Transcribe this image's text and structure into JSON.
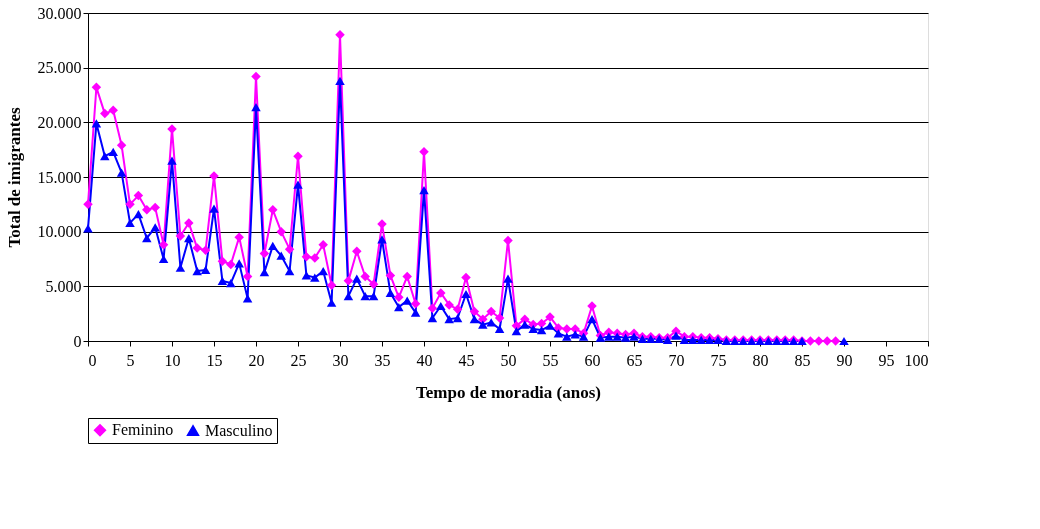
{
  "chart_data": {
    "type": "line",
    "xlabel": "Tempo de moradia (anos)",
    "ylabel": "Total de imigrantes",
    "x": [
      0,
      1,
      2,
      3,
      4,
      5,
      6,
      7,
      8,
      9,
      10,
      11,
      12,
      13,
      14,
      15,
      16,
      17,
      18,
      19,
      20,
      21,
      22,
      23,
      24,
      25,
      26,
      27,
      28,
      29,
      30,
      31,
      32,
      33,
      34,
      35,
      36,
      37,
      38,
      39,
      40,
      41,
      42,
      43,
      44,
      45,
      46,
      47,
      48,
      49,
      50,
      51,
      52,
      53,
      54,
      55,
      56,
      57,
      58,
      59,
      60,
      61,
      62,
      63,
      64,
      65,
      66,
      67,
      68,
      69,
      70,
      71,
      72,
      73,
      74,
      75,
      76,
      77,
      78,
      79,
      80,
      81,
      82,
      83,
      84,
      85,
      86,
      87,
      88,
      89,
      90
    ],
    "series": [
      {
        "name": "Feminino",
        "color": "#ff00ff",
        "marker": "diamond",
        "values": [
          12500,
          23200,
          20800,
          21100,
          17900,
          12500,
          13300,
          12000,
          12200,
          8800,
          19400,
          9600,
          10800,
          8500,
          8300,
          15100,
          7300,
          7000,
          9500,
          5900,
          24200,
          8000,
          12000,
          10000,
          8400,
          16900,
          7700,
          7600,
          8800,
          5100,
          28000,
          5500,
          8200,
          5900,
          5200,
          10700,
          6000,
          4000,
          5900,
          3400,
          17300,
          3000,
          4400,
          3300,
          2900,
          5800,
          2700,
          2000,
          2700,
          2100,
          9200,
          1400,
          2000,
          1500,
          1600,
          2200,
          1200,
          1100,
          1100,
          700,
          3200,
          500,
          800,
          700,
          600,
          700,
          400,
          400,
          300,
          300,
          900,
          400,
          400,
          300,
          300,
          200,
          100,
          100,
          100,
          100,
          100,
          100,
          100,
          100,
          100,
          0,
          0,
          0,
          0,
          0,
          null
        ]
      },
      {
        "name": "Masculino",
        "color": "#0000ff",
        "marker": "triangle",
        "values": [
          10300,
          19900,
          16900,
          17300,
          15400,
          10800,
          11600,
          9400,
          10400,
          7500,
          16500,
          6700,
          9400,
          6400,
          6500,
          12100,
          5500,
          5300,
          7100,
          3900,
          21400,
          6300,
          8700,
          7800,
          6400,
          14300,
          6000,
          5800,
          6400,
          3500,
          23800,
          4100,
          5700,
          4100,
          4100,
          9300,
          4400,
          3100,
          3700,
          2600,
          13800,
          2100,
          3200,
          2000,
          2100,
          4300,
          2000,
          1500,
          1700,
          1100,
          5700,
          900,
          1500,
          1100,
          1000,
          1400,
          700,
          400,
          600,
          400,
          2000,
          300,
          400,
          400,
          300,
          400,
          200,
          200,
          200,
          100,
          500,
          100,
          100,
          100,
          100,
          100,
          0,
          0,
          0,
          0,
          0,
          0,
          0,
          0,
          0,
          0,
          null,
          null,
          null,
          null,
          0
        ]
      }
    ],
    "xlim": [
      0,
      100
    ],
    "xticks": [
      0,
      5,
      10,
      15,
      20,
      25,
      30,
      35,
      40,
      45,
      50,
      55,
      60,
      65,
      70,
      75,
      80,
      85,
      90,
      95,
      100
    ],
    "ylim": [
      0,
      30000
    ],
    "yticks": [
      0,
      {
        "value": 5000,
        "label": "5.000"
      },
      {
        "value": 10000,
        "label": "10.000"
      },
      {
        "value": 15000,
        "label": "15.000"
      },
      {
        "value": 20000,
        "label": "20.000"
      },
      {
        "value": 25000,
        "label": "25.000"
      },
      {
        "value": 30000,
        "label": "30.000"
      }
    ],
    "grid": "y",
    "legend": "bottom",
    "line_style": "solid"
  }
}
